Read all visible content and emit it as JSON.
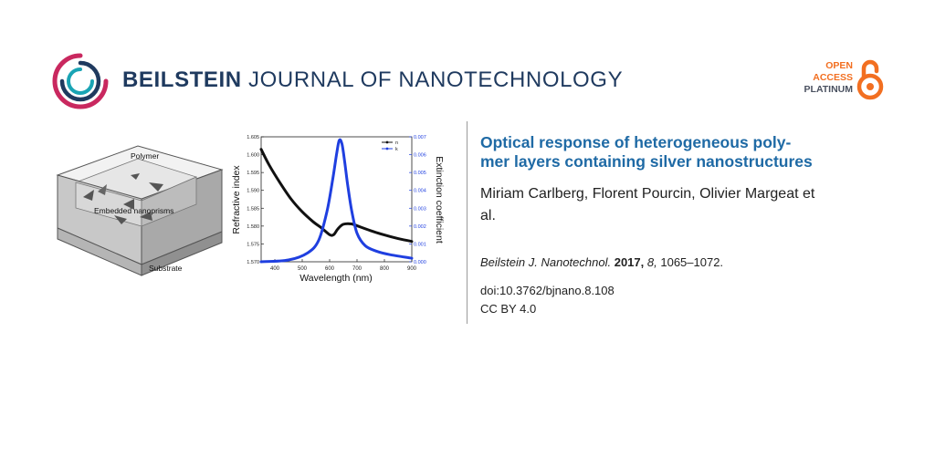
{
  "header": {
    "journal_bold": "BEILSTEIN",
    "journal_rest": "JOURNAL OF NANOTECHNOLOGY",
    "open_access": [
      "OPEN",
      "ACCESS",
      "PLATINUM"
    ]
  },
  "graphical_abstract": {
    "schematic_labels": {
      "polymer": "Polymer",
      "nanoprisms": "Embedded nanoprisms",
      "substrate": "Substrate"
    }
  },
  "chart_data": {
    "type": "line",
    "xlabel": "Wavelength (nm)",
    "ylabel": "Refractive index",
    "y2label": "Extinction coefficient",
    "x_ticks": [
      400,
      500,
      600,
      700,
      800,
      900
    ],
    "y_ticks": [
      "1.570",
      "1.575",
      "1.580",
      "1.585",
      "1.590",
      "1.595",
      "1.600",
      "1.605"
    ],
    "y2_ticks": [
      "0.000",
      "0.001",
      "0.002",
      "0.003",
      "0.004",
      "0.005",
      "0.006",
      "0.007"
    ],
    "xlim": [
      350,
      900
    ],
    "ylim": [
      1.57,
      1.605
    ],
    "y2lim": [
      0.0,
      0.007
    ],
    "legend": [
      "n",
      "k"
    ],
    "series": [
      {
        "name": "n",
        "color": "#111111",
        "axis": "left",
        "x": [
          350,
          380,
          420,
          460,
          500,
          540,
          570,
          600,
          615,
          630,
          650,
          680,
          710,
          750,
          800,
          850,
          900
        ],
        "values": [
          1.6015,
          1.597,
          1.592,
          1.5875,
          1.584,
          1.5812,
          1.5795,
          1.5776,
          1.5776,
          1.5792,
          1.5805,
          1.5806,
          1.5798,
          1.5787,
          1.5775,
          1.5765,
          1.5757
        ]
      },
      {
        "name": "k",
        "color": "#1f3fe0",
        "axis": "right",
        "x": [
          350,
          450,
          520,
          560,
          590,
          610,
          625,
          635,
          645,
          655,
          665,
          680,
          700,
          730,
          770,
          820,
          900
        ],
        "values": [
          0.0,
          0.0001,
          0.0005,
          0.0012,
          0.0028,
          0.0045,
          0.006,
          0.0068,
          0.0066,
          0.0056,
          0.0044,
          0.0029,
          0.0016,
          0.0009,
          0.0006,
          0.0004,
          0.0002
        ]
      }
    ]
  },
  "article": {
    "title_lines": [
      "Optical response of heterogeneous poly-",
      "mer layers containing silver nanostructures"
    ],
    "author_lines": [
      "Miriam Carlberg, Florent Pourcin, Olivier Margeat et",
      "al."
    ],
    "citation": {
      "journal": "Beilstein J. Nanotechnol.",
      "year": "2017,",
      "volume": "8,",
      "pages": "1065–1072."
    },
    "doi": "doi:10.3762/bjnano.8.108",
    "license": "CC BY 4.0"
  }
}
